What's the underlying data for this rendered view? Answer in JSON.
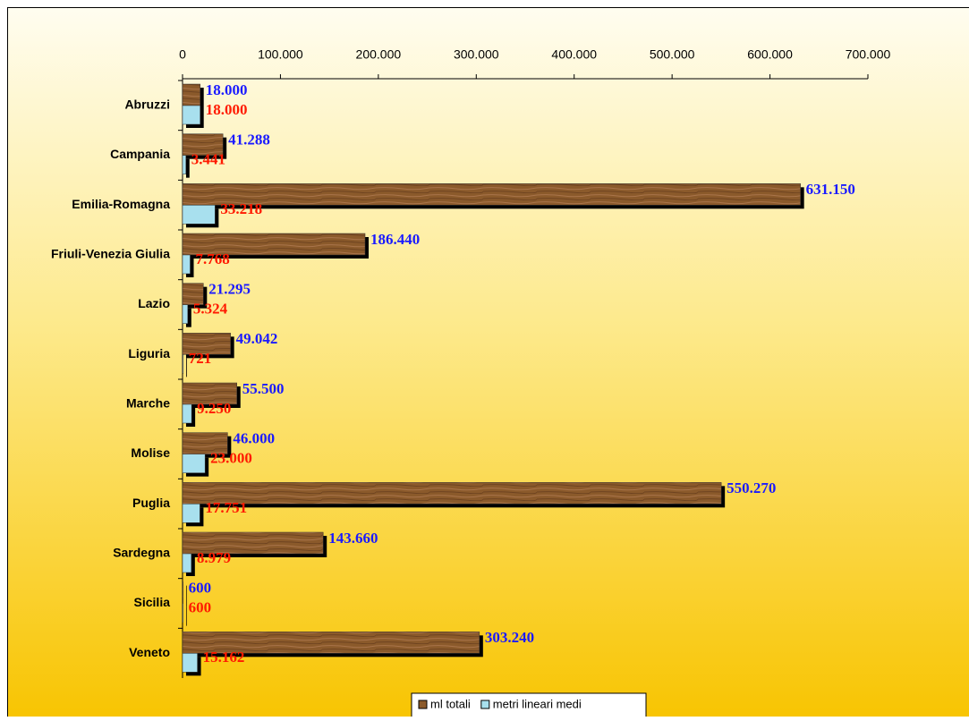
{
  "chart_data": {
    "type": "bar",
    "orientation": "horizontal",
    "categories": [
      "Abruzzi",
      "Campania",
      "Emilia-Romagna",
      "Friuli-Venezia Giulia",
      "Lazio",
      "Liguria",
      "Marche",
      "Molise",
      "Puglia",
      "Sardegna",
      "Sicilia",
      "Veneto"
    ],
    "series": [
      {
        "name": "ml totali",
        "color": "#8b5a2b",
        "label_color": "#1a1aff",
        "values": [
          18000,
          41288,
          631150,
          186440,
          21295,
          49042,
          55500,
          46000,
          550270,
          143660,
          600,
          303240
        ],
        "value_labels": [
          "18.000",
          "41.288",
          "631.150",
          "186.440",
          "21.295",
          "49.042",
          "55.500",
          "46.000",
          "550.270",
          "143.660",
          "600",
          "303.240"
        ]
      },
      {
        "name": "metri lineari medi",
        "color": "#a8e0ee",
        "label_color": "#ff1a00",
        "values": [
          18000,
          3441,
          33218,
          7768,
          5324,
          721,
          9250,
          23000,
          17751,
          8979,
          600,
          15162
        ],
        "value_labels": [
          "18.000",
          "3.441",
          "33.218",
          "7.768",
          "5.324",
          "721",
          "9.250",
          "23.000",
          "17.751",
          "8.979",
          "600",
          "15.162"
        ]
      }
    ],
    "xlim": [
      0,
      700000
    ],
    "xticks": [
      0,
      {
        "value": 100000,
        "label": "100.000"
      },
      {
        "value": 200000,
        "label": "200.000"
      },
      {
        "value": 300000,
        "label": "300.000"
      },
      {
        "value": 400000,
        "label": "400.000"
      },
      {
        "value": 500000,
        "label": "500.000"
      },
      {
        "value": 600000,
        "label": "600.000"
      },
      {
        "value": 700000,
        "label": "700.000"
      }
    ],
    "legend": "bottom"
  }
}
